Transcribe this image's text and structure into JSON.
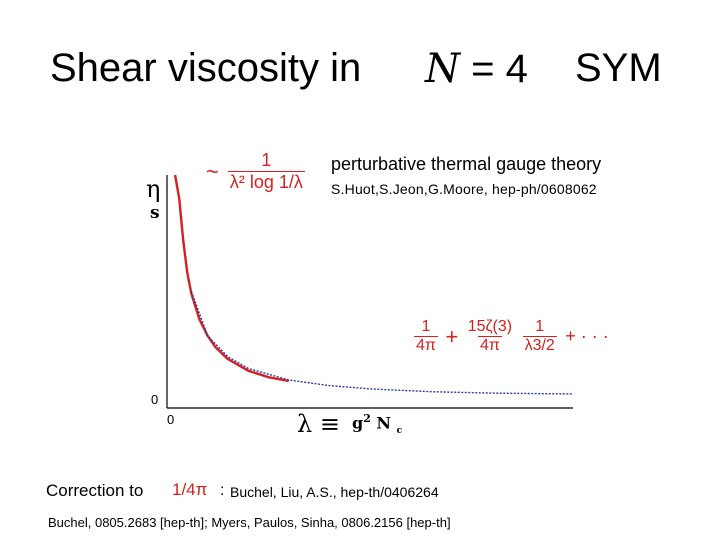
{
  "slide": {
    "title_left": "Shear viscosity in",
    "title_math_N": "N",
    "title_math_rest": " = 4",
    "title_right": "SYM"
  },
  "formula_top": {
    "tilde": "~",
    "numerator": "1",
    "denominator": "λ² log 1/λ"
  },
  "annotations": {
    "perturbative": "perturbative thermal gauge theory",
    "citation_perturbative": "S.Huot,S.Jeon,G.Moore, hep-ph/0608062"
  },
  "axes": {
    "y_top": "η",
    "y_bottom": "s",
    "y_zero": "0",
    "x_zero": "0",
    "x_label_lambda": "λ ≡",
    "x_label_g": "g",
    "x_label_sup": "2",
    "x_label_N": "N",
    "x_label_sub": "c"
  },
  "formula_strong": {
    "term1_num": "1",
    "term1_den": "4π",
    "plus1": "+",
    "term2_num": "15ζ(3)",
    "term2_den": "4π",
    "term3_num": "1",
    "term3_den": "λ3/2",
    "tail": "+ · · ·"
  },
  "correction": {
    "label": "Correction to",
    "math": "1/4π",
    "colon": ":",
    "citation": "Buchel, Liu, A.S., hep-th/0406264"
  },
  "footer_citation": "Buchel, 0805.2683 [hep-th]; Myers, Paulos, Sinha, 0806.2156 [hep-th]",
  "colors": {
    "curve_perturbative": "#d42020",
    "curve_strong": "#2a3ca8",
    "axis": "#000000",
    "formula": "#d42020"
  },
  "chart_data": {
    "type": "line",
    "title": "",
    "xlabel": "λ ≡ g2N c",
    "ylabel": "η/s",
    "xlim": [
      0,
      10
    ],
    "ylim": [
      0,
      5
    ],
    "x_tick_labels": [
      "0"
    ],
    "y_tick_labels": [
      "0"
    ],
    "grid": false,
    "series": [
      {
        "x": [
          0.2,
          0.3,
          0.4,
          0.5,
          0.6,
          0.8,
          1.0,
          1.2,
          1.5,
          2.0,
          2.5,
          3.0
        ],
        "y": [
          5.0,
          4.5,
          3.6,
          2.9,
          2.45,
          1.9,
          1.55,
          1.3,
          1.05,
          0.8,
          0.66,
          0.58
        ]
      },
      {
        "x": [
          0.6,
          1.0,
          1.5,
          2.0,
          3.0,
          4.0,
          5.0,
          6.5,
          8.0,
          10.0
        ],
        "y": [
          2.5,
          1.55,
          1.1,
          0.85,
          0.6,
          0.48,
          0.41,
          0.35,
          0.32,
          0.3
        ]
      }
    ]
  }
}
